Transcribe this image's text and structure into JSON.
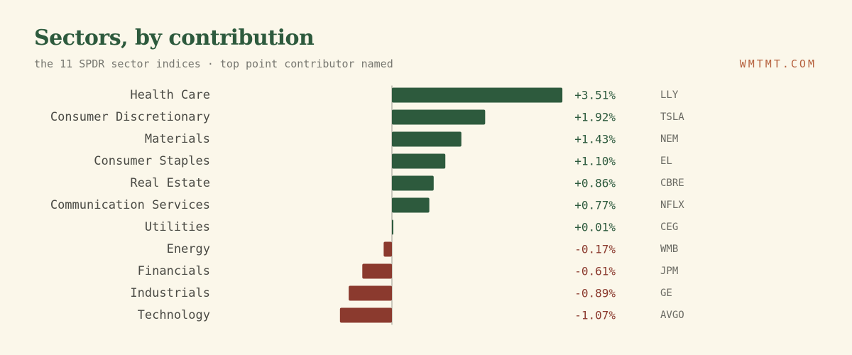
{
  "header": {
    "title": "Sectors, by contribution",
    "subtitle": "the 11 SPDR sector indices · top point contributor named",
    "brand": "WMTMT.COM"
  },
  "colors": {
    "positive": "#2d5a3d",
    "negative": "#8b3a2e",
    "zero_line": "#9a9a90"
  },
  "chart_data": {
    "type": "bar",
    "orientation": "horizontal",
    "title": "Sectors, by contribution",
    "categories": [
      "Health Care",
      "Consumer Discretionary",
      "Materials",
      "Consumer Staples",
      "Real Estate",
      "Communication Services",
      "Utilities",
      "Energy",
      "Financials",
      "Industrials",
      "Technology"
    ],
    "values": [
      3.51,
      1.92,
      1.43,
      1.1,
      0.86,
      0.77,
      0.01,
      -0.17,
      -0.61,
      -0.89,
      -1.07
    ],
    "value_labels": [
      "+3.51%",
      "+1.92%",
      "+1.43%",
      "+1.10%",
      "+0.86%",
      "+0.77%",
      "+0.01%",
      "-0.17%",
      "-0.61%",
      "-0.89%",
      "-1.07%"
    ],
    "top_contributors": [
      "LLY",
      "TSLA",
      "NEM",
      "EL",
      "CBRE",
      "NFLX",
      "CEG",
      "WMB",
      "JPM",
      "GE",
      "AVGO"
    ],
    "unit": "%",
    "grid": false,
    "legend": "none"
  }
}
